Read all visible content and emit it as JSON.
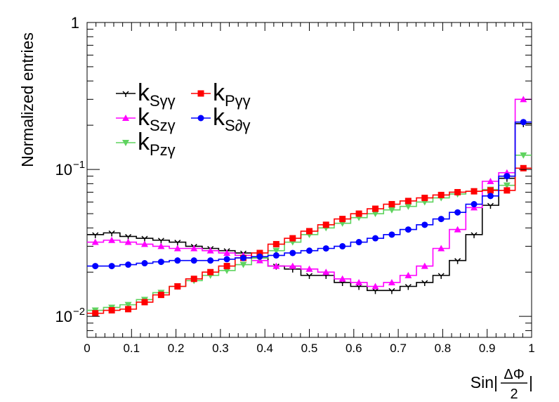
{
  "chart_data": {
    "type": "line",
    "style": "step-histogram-with-markers",
    "ylabel": "Normalized entries",
    "xlabel": {
      "prefix": "Sin|",
      "numerator": "ΔΦ",
      "denominator": "2",
      "suffix": "|"
    },
    "xlim": [
      0,
      1
    ],
    "ylim": [
      0.0072,
      1
    ],
    "yscale": "log",
    "grid": false,
    "legend_position": "upper-left",
    "x_ticks": [
      "0",
      "0.1",
      "0.2",
      "0.3",
      "0.4",
      "0.5",
      "0.6",
      "0.7",
      "0.8",
      "0.9",
      "1"
    ],
    "y_ticks": [
      {
        "value": 1,
        "base": "1",
        "exp": ""
      },
      {
        "value": 0.1,
        "base": "10",
        "exp": "−1"
      },
      {
        "value": 0.01,
        "base": "10",
        "exp": "−2"
      }
    ],
    "bin_edges": [
      0.0,
      0.037,
      0.074,
      0.111,
      0.148,
      0.185,
      0.222,
      0.259,
      0.296,
      0.333,
      0.37,
      0.407,
      0.444,
      0.481,
      0.519,
      0.556,
      0.593,
      0.63,
      0.667,
      0.704,
      0.741,
      0.778,
      0.815,
      0.852,
      0.889,
      0.926,
      0.963,
      1.0
    ],
    "series": [
      {
        "name": "k_Sγγ",
        "main": "k",
        "sub": "Sγγ",
        "color": "#000000",
        "marker": "tri-down-small",
        "values": [
          0.036,
          0.037,
          0.035,
          0.034,
          0.033,
          0.032,
          0.03,
          0.029,
          0.028,
          0.027,
          0.025,
          0.022,
          0.021,
          0.019,
          0.019,
          0.017,
          0.016,
          0.015,
          0.015,
          0.016,
          0.017,
          0.019,
          0.024,
          0.036,
          0.057,
          0.087,
          0.205
        ]
      },
      {
        "name": "k_Szγ",
        "main": "k",
        "sub": "Szγ",
        "color": "#ff00ff",
        "marker": "tri-up",
        "values": [
          0.032,
          0.033,
          0.032,
          0.031,
          0.03,
          0.029,
          0.029,
          0.028,
          0.027,
          0.026,
          0.024,
          0.022,
          0.022,
          0.021,
          0.02,
          0.018,
          0.017,
          0.016,
          0.017,
          0.019,
          0.022,
          0.029,
          0.039,
          0.055,
          0.083,
          0.095,
          0.3
        ]
      },
      {
        "name": "k_Pzγ",
        "main": "k",
        "sub": "Pzγ",
        "color": "#5fd35f",
        "marker": "tri-down",
        "values": [
          0.011,
          0.0115,
          0.012,
          0.013,
          0.0145,
          0.016,
          0.0175,
          0.019,
          0.0205,
          0.0225,
          0.025,
          0.028,
          0.032,
          0.036,
          0.04,
          0.043,
          0.047,
          0.05,
          0.053,
          0.056,
          0.06,
          0.064,
          0.068,
          0.071,
          0.073,
          0.078,
          0.125
        ]
      },
      {
        "name": "k_Pγγ",
        "main": "k",
        "sub": "Pγγ",
        "color": "#ff0000",
        "marker": "square",
        "values": [
          0.0105,
          0.011,
          0.0112,
          0.0125,
          0.014,
          0.016,
          0.018,
          0.02,
          0.022,
          0.025,
          0.027,
          0.031,
          0.034,
          0.038,
          0.042,
          0.046,
          0.05,
          0.054,
          0.058,
          0.061,
          0.064,
          0.067,
          0.07,
          0.071,
          0.072,
          0.072,
          0.102
        ]
      },
      {
        "name": "k_S∂γ",
        "main": "k",
        "sub": "S∂γ",
        "color": "#0000ff",
        "marker": "circle",
        "values": [
          0.022,
          0.022,
          0.0225,
          0.023,
          0.0235,
          0.024,
          0.024,
          0.024,
          0.0245,
          0.025,
          0.0255,
          0.026,
          0.027,
          0.028,
          0.029,
          0.03,
          0.032,
          0.034,
          0.036,
          0.039,
          0.042,
          0.046,
          0.051,
          0.058,
          0.066,
          0.09,
          0.21
        ]
      }
    ],
    "legend": {
      "columns": [
        [
          "k_Sγγ",
          "k_Szγ",
          "k_Pzγ"
        ],
        [
          "k_Pγγ",
          "k_S∂γ"
        ]
      ]
    }
  }
}
